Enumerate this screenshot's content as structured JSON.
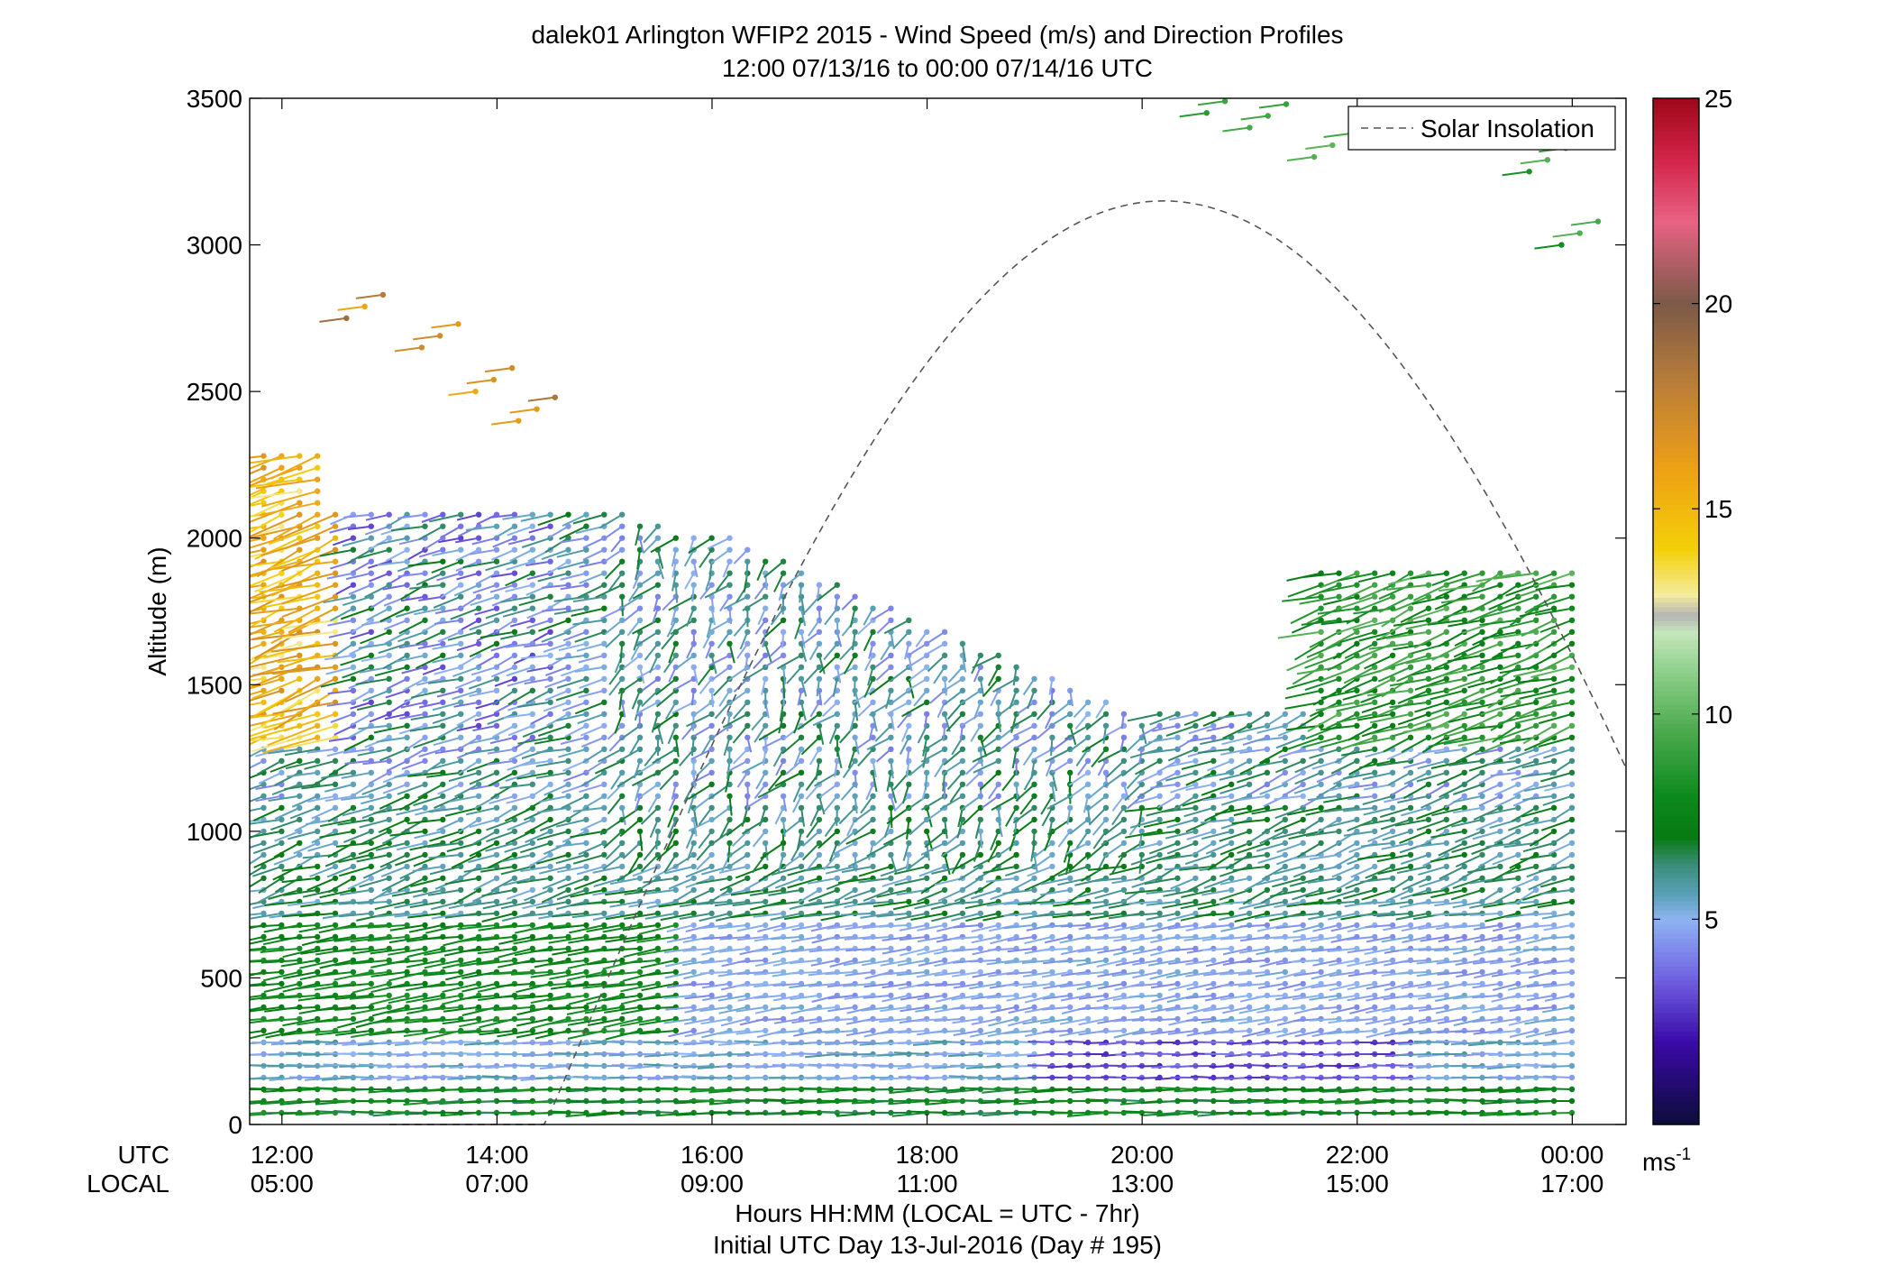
{
  "chart_data": {
    "type": "wind-barb-profile",
    "title": "dalek01 Arlington WFIP2 2015 - Wind Speed (m/s) and Direction Profiles",
    "subtitle": "12:00 07/13/16 to 00:00 07/14/16  UTC",
    "xlabel": "Hours HH:MM  (LOCAL = UTC - 7hr)",
    "xlabel2": "Initial UTC Day 13-Jul-2016 (Day # 195)",
    "ylabel": "Altitude (m)",
    "row_labels": {
      "utc": "UTC",
      "local": "LOCAL"
    },
    "x_ticks_utc": [
      "12:00",
      "14:00",
      "16:00",
      "18:00",
      "20:00",
      "22:00",
      "00:00"
    ],
    "x_ticks_local": [
      "05:00",
      "07:00",
      "09:00",
      "11:00",
      "13:00",
      "15:00",
      "17:00"
    ],
    "xlim_hours_utc": [
      11.7,
      24.5
    ],
    "y_ticks": [
      "0",
      "500",
      "1000",
      "1500",
      "2000",
      "2500",
      "3000",
      "3500"
    ],
    "ylim": [
      0,
      3500
    ],
    "colorbar": {
      "ticks": [
        "5",
        "10",
        "15",
        "20",
        "25"
      ],
      "range": [
        0,
        25
      ],
      "unit_base": "ms",
      "unit_exp": "-1",
      "stops": [
        {
          "v": 0,
          "c": "#0d0c3a"
        },
        {
          "v": 2,
          "c": "#3a0aa8"
        },
        {
          "v": 3.5,
          "c": "#6f5ee0"
        },
        {
          "v": 5,
          "c": "#8eb4f2"
        },
        {
          "v": 5.6,
          "c": "#5aa0b8"
        },
        {
          "v": 6.3,
          "c": "#3c8e7c"
        },
        {
          "v": 7,
          "c": "#077a12"
        },
        {
          "v": 8,
          "c": "#0d8a1e"
        },
        {
          "v": 9.5,
          "c": "#48a84a"
        },
        {
          "v": 11,
          "c": "#8ccf8a"
        },
        {
          "v": 12,
          "c": "#c6e6bb"
        },
        {
          "v": 12.4,
          "c": "#b4b4b4"
        },
        {
          "v": 12.9,
          "c": "#f4ec9e"
        },
        {
          "v": 14,
          "c": "#f4d008"
        },
        {
          "v": 16,
          "c": "#eca014"
        },
        {
          "v": 18,
          "c": "#bb7e38"
        },
        {
          "v": 20,
          "c": "#7b5a48"
        },
        {
          "v": 22,
          "c": "#e86284"
        },
        {
          "v": 23.5,
          "c": "#d4244a"
        },
        {
          "v": 25,
          "c": "#9e0818"
        }
      ]
    },
    "legend": {
      "label": "Solar Insolation",
      "placement": "top-right"
    },
    "solar_insolation_curve": {
      "description_hours_utc": [
        13.0,
        24.5
      ],
      "peak_hour_utc": 20.2,
      "peak_altitude_m": 3150
    },
    "sampling": {
      "profile_interval_minutes": 10,
      "first_profile_utc": 11.83,
      "last_profile_utc": 24.0,
      "altitude_step_m": 40,
      "lowest_gate_m": 40
    }
  }
}
